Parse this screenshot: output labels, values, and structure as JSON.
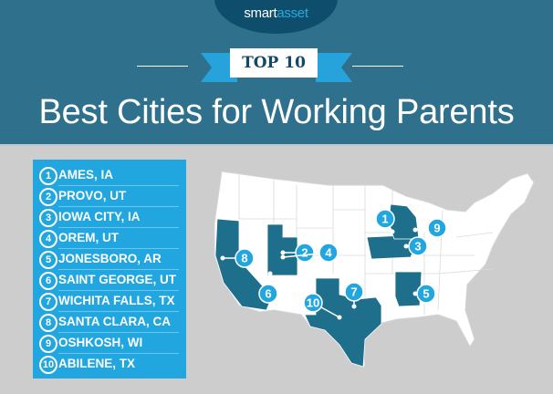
{
  "brand": {
    "logo_text_1": "smart",
    "logo_text_2": "asset"
  },
  "banner": {
    "label": "TOP 10"
  },
  "title": "Best Cities for Working Parents",
  "colors": {
    "header": "#2f708d",
    "accent": "#22a6df",
    "highlight_state": "#1e6f8c",
    "background": "#cdcdcd"
  },
  "rankings": [
    {
      "rank": "1",
      "city": "AMES, IA"
    },
    {
      "rank": "2",
      "city": "PROVO, UT"
    },
    {
      "rank": "3",
      "city": "IOWA CITY, IA"
    },
    {
      "rank": "4",
      "city": "OREM, UT"
    },
    {
      "rank": "5",
      "city": "JONESBORO, AR"
    },
    {
      "rank": "6",
      "city": "SAINT GEORGE, UT"
    },
    {
      "rank": "7",
      "city": "WICHITA FALLS, TX"
    },
    {
      "rank": "8",
      "city": "SANTA CLARA, CA"
    },
    {
      "rank": "9",
      "city": "OSHKOSH, WI"
    },
    {
      "rank": "10",
      "city": "ABILENE, TX"
    }
  ],
  "highlighted_states": [
    "CA",
    "UT",
    "TX",
    "IA",
    "WI",
    "AR"
  ]
}
